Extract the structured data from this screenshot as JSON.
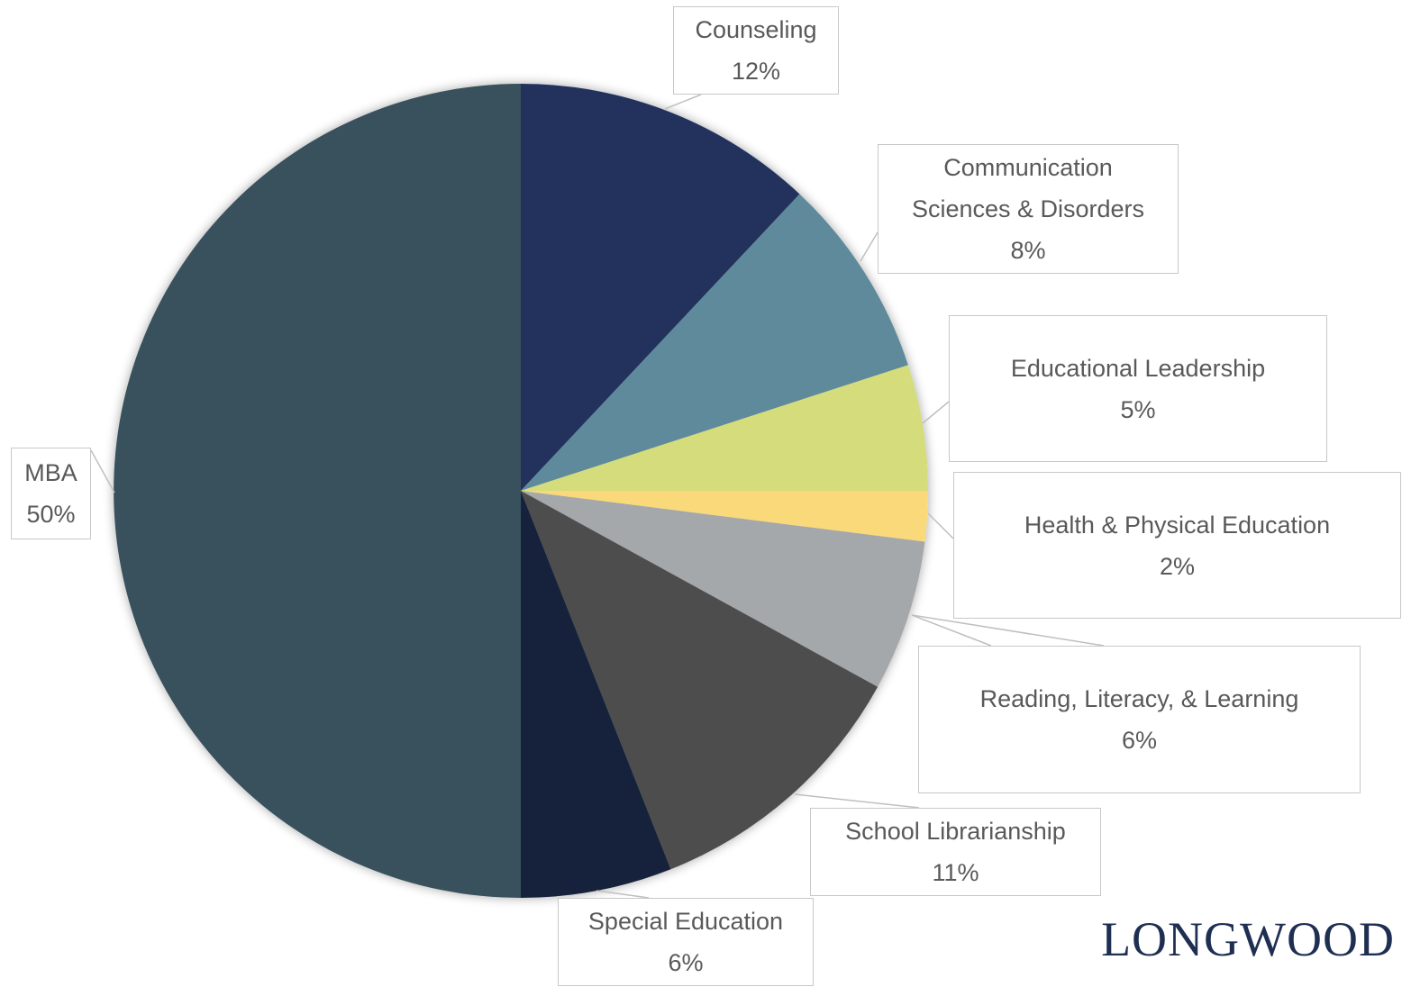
{
  "chart_data": {
    "type": "pie",
    "categories": [
      "Counseling",
      "Communication Sciences & Disorders",
      "Educational Leadership",
      "Health & Physical Education",
      "Reading, Literacy, & Learning",
      "School Librarianship",
      "Special Education",
      "MBA"
    ],
    "values": [
      12,
      8,
      5,
      2,
      6,
      11,
      6,
      50
    ],
    "value_labels": [
      "12%",
      "8%",
      "5%",
      "2%",
      "6%",
      "11%",
      "6%",
      "50%"
    ],
    "colors": [
      "#20335c",
      "#5e8a9c",
      "#d4dc7c",
      "#fad97a",
      "#a4a8ab",
      "#4d4d4d",
      "#16223a",
      "#39515c"
    ]
  },
  "logo": "LONGWOOD"
}
